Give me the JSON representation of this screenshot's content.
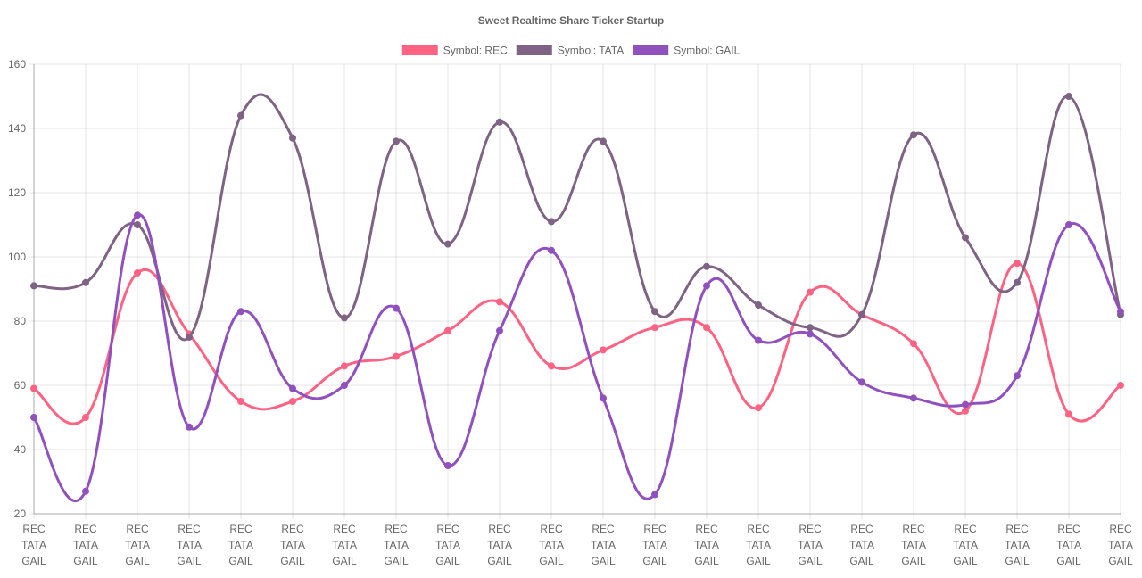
{
  "chart_data": {
    "type": "line",
    "title": "Sweet Realtime Share Ticker Startup",
    "legend_position": "top",
    "grid": true,
    "ylim": [
      20,
      160
    ],
    "y_ticks": [
      20,
      40,
      60,
      80,
      100,
      120,
      140,
      160
    ],
    "x_label_lines": [
      "REC",
      "TATA",
      "GAIL"
    ],
    "x_count": 22,
    "series": [
      {
        "name": "Symbol: REC",
        "color": "#ff6384",
        "values": [
          59,
          50,
          95,
          76,
          55,
          55,
          66,
          69,
          77,
          86,
          66,
          71,
          78,
          78,
          53,
          89,
          82,
          73,
          52,
          98,
          51,
          60
        ]
      },
      {
        "name": "Symbol: TATA",
        "color": "#7e6384",
        "values": [
          91,
          92,
          110,
          75,
          144,
          137,
          81,
          136,
          104,
          142,
          111,
          136,
          83,
          97,
          85,
          78,
          82,
          138,
          106,
          92,
          150,
          82
        ]
      },
      {
        "name": "Symbol: GAIL",
        "color": "#9050bd",
        "values": [
          50,
          27,
          113,
          47,
          83,
          59,
          60,
          84,
          35,
          77,
          102,
          56,
          26,
          91,
          74,
          76,
          61,
          56,
          54,
          63,
          110,
          83
        ]
      }
    ]
  }
}
